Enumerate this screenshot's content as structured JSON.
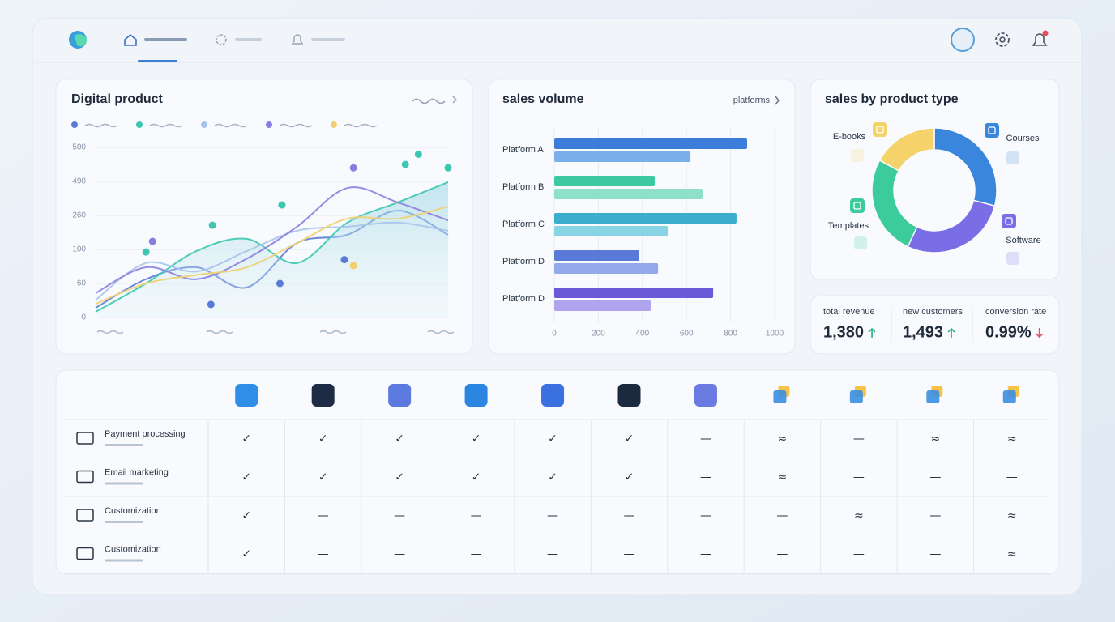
{
  "chart_data": [
    {
      "type": "line",
      "title": "Digital product",
      "categories": [
        null,
        null,
        null,
        null,
        null,
        null,
        null,
        null
      ],
      "yticks": [
        0,
        60,
        100,
        260,
        490,
        500
      ],
      "series": [
        {
          "color": "#5a7ad8",
          "values": [
            17,
            65,
            79,
            53,
            130,
            169,
            293,
            169
          ]
        },
        {
          "color": "#3cc8b0",
          "values": [
            10,
            60,
            98,
            150,
            84,
            226,
            348,
            485
          ]
        },
        {
          "color": "#a8c4ea",
          "values": [
            31,
            84,
            74,
            98,
            188,
            207,
            226,
            188
          ]
        },
        {
          "color": "#8c7ee0",
          "values": [
            43,
            79,
            65,
            89,
            207,
            446,
            348,
            237
          ]
        },
        {
          "color": "#f0d070",
          "values": [
            24,
            60,
            70,
            79,
            130,
            245,
            245,
            320
          ]
        }
      ],
      "points": [
        {
          "x": 1.0,
          "y": 97,
          "color": "#3cc8b0"
        },
        {
          "x": 1.13,
          "y": 138,
          "color": "#8c7ee0"
        },
        {
          "x": 2.32,
          "y": 214,
          "color": "#3cc8b0"
        },
        {
          "x": 2.29,
          "y": 23,
          "color": "#5a7ad8"
        },
        {
          "x": 3.66,
          "y": 60,
          "color": "#5a7ad8"
        },
        {
          "x": 3.7,
          "y": 331,
          "color": "#3cc8b0"
        },
        {
          "x": 4.94,
          "y": 88,
          "color": "#5a7ad8"
        },
        {
          "x": 5.12,
          "y": 81,
          "color": "#f0d070"
        },
        {
          "x": 5.12,
          "y": 494,
          "color": "#8c7ee0"
        },
        {
          "x": 6.15,
          "y": 495,
          "color": "#3cc8b0"
        },
        {
          "x": 6.41,
          "y": 498,
          "color": "#3cc8b0"
        },
        {
          "x": 7,
          "y": 494,
          "color": "#3cc8b0"
        }
      ]
    },
    {
      "type": "bar",
      "orientation": "horizontal",
      "title": "sales volume",
      "link": "platforms",
      "categories": [
        "Platform A",
        "Platform B",
        "Platform C",
        "Platform D",
        "Platform D"
      ],
      "series": [
        {
          "values": [
            875,
            456,
            827,
            386,
            721
          ],
          "colors": [
            "#3b7dd8",
            "#3cc8a0",
            "#3aaecc",
            "#5a7ad8",
            "#6a5ad8"
          ]
        },
        {
          "values": [
            618,
            673,
            515,
            471,
            438
          ],
          "colors": [
            "#7ab0ea",
            "#8fe0c8",
            "#88d4e4",
            "#94a8ec",
            "#b0a4ee"
          ]
        }
      ],
      "xlim": [
        0,
        1000
      ],
      "xticks": [
        0,
        200,
        400,
        600,
        800,
        1000
      ],
      "grid": true
    },
    {
      "type": "pie",
      "donut": true,
      "title": "sales by product type",
      "categories": [
        "Courses",
        "Software",
        "Templates",
        "E-books"
      ],
      "values": [
        29,
        28,
        26,
        17
      ],
      "colors": [
        "#3a86dc",
        "#7a6ee6",
        "#3ccc9c",
        "#f6d26a"
      ]
    }
  ],
  "kpis": [
    {
      "label": "total revenue",
      "value": "1,380",
      "trend": "up"
    },
    {
      "label": "new customers",
      "value": "1,493",
      "trend": "up"
    },
    {
      "label": "conversion rate",
      "value": "0.99%",
      "trend": "down"
    }
  ],
  "table": {
    "symbol_colors": {
      "✓": "#48c08f"
    },
    "rows": [
      {
        "label": "Payment processing",
        "cells": [
          "✓",
          "✓",
          "✓",
          "✓",
          "✓",
          "✓",
          "—",
          "≈",
          "—",
          "≈",
          "≈"
        ]
      },
      {
        "label": "Email marketing",
        "cells": [
          "✓",
          "✓",
          "✓",
          "✓",
          "✓",
          "✓",
          "—",
          "≈",
          "—",
          "—",
          "—"
        ]
      },
      {
        "label": "Customization",
        "cells": [
          "✓",
          "—",
          "—",
          "—",
          "—",
          "—",
          "—",
          "—",
          "≈",
          "—",
          "≈"
        ]
      },
      {
        "label": "Customization",
        "cells": [
          "✓",
          "—",
          "—",
          "—",
          "—",
          "—",
          "—",
          "—",
          "—",
          "—",
          "≈"
        ]
      }
    ]
  }
}
